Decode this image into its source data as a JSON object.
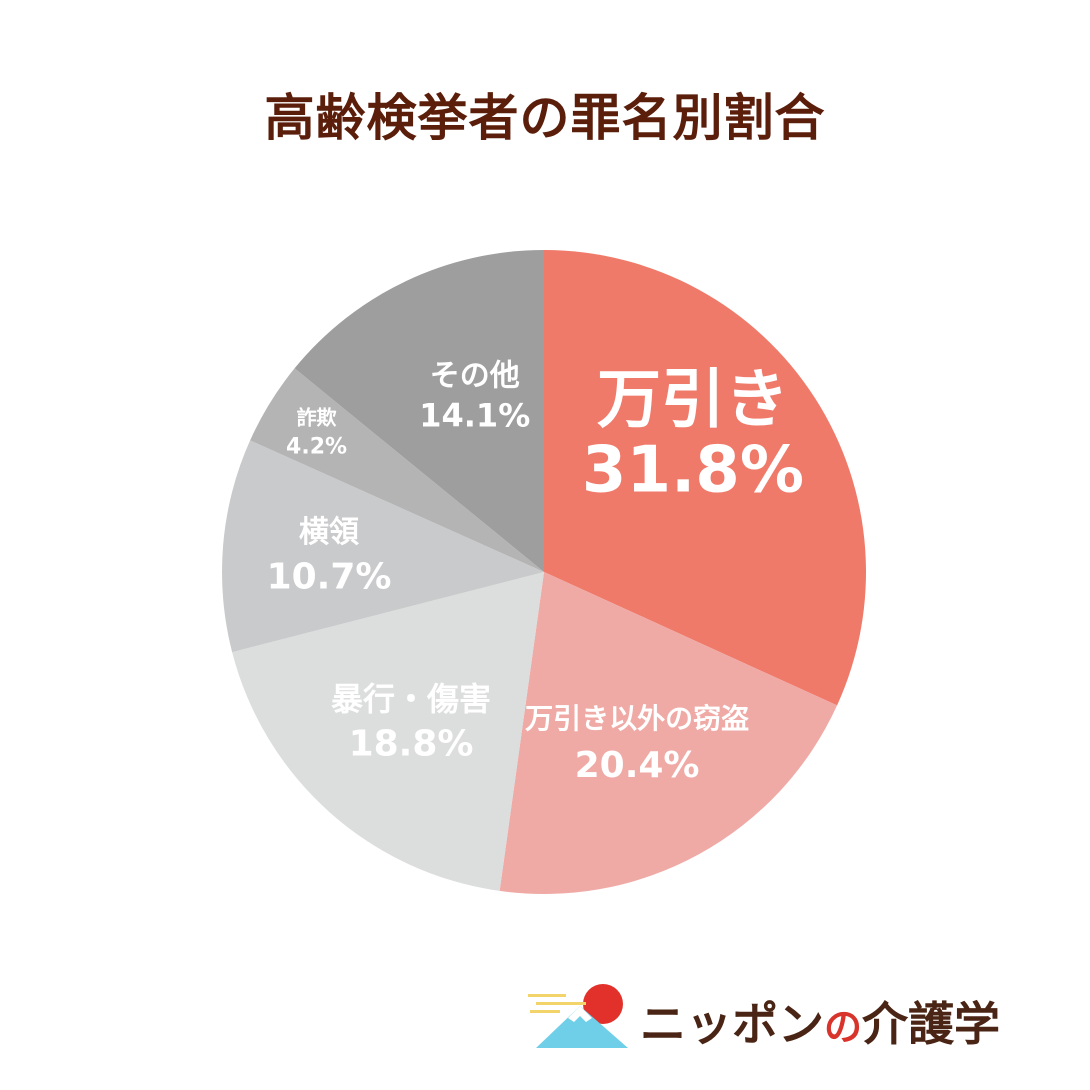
{
  "title": "高齢検挙者の罪名別割合",
  "chart_data": {
    "type": "pie",
    "title": "高齢検挙者の罪名別割合",
    "start_angle_deg": 0,
    "direction": "clockwise",
    "slices": [
      {
        "name": "万引き",
        "value": 31.8,
        "label": "31.8%",
        "color": "#f07a6a"
      },
      {
        "name": "万引き以外の窃盗",
        "value": 20.4,
        "label": "20.4%",
        "color": "#efaaa6"
      },
      {
        "name": "暴行・傷害",
        "value": 18.8,
        "label": "18.8%",
        "color": "#dcdddd"
      },
      {
        "name": "横領",
        "value": 10.7,
        "label": "10.7%",
        "color": "#c9cacb"
      },
      {
        "name": "詐欺",
        "value": 4.2,
        "label": "4.2%",
        "color": "#b4b4b5"
      },
      {
        "name": "その他",
        "value": 14.1,
        "label": "14.1%",
        "color": "#9e9e9f"
      }
    ]
  },
  "brand": {
    "name_part1": "ニッポン",
    "name_part2": "の",
    "name_part3": "介護学",
    "colors": {
      "sun": "#e1312a",
      "mountain": "#6fcfe8",
      "cloud": "#f2d46b",
      "text": "#4a2414"
    }
  }
}
